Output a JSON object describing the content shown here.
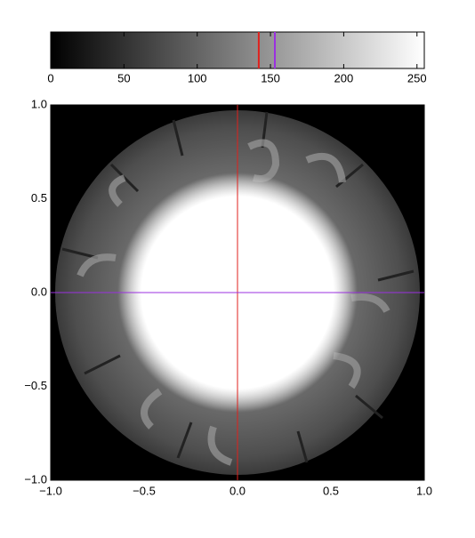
{
  "chart_data": [
    {
      "type": "colorbar",
      "xlim": [
        0,
        255
      ],
      "xticks": [
        0,
        50,
        100,
        150,
        200,
        250
      ],
      "markers": [
        {
          "value": 142,
          "color": "#e0201c"
        },
        {
          "value": 153,
          "color": "#9b30e0"
        }
      ]
    },
    {
      "type": "image",
      "xlim": [
        -1,
        1
      ],
      "ylim": [
        -1,
        1
      ],
      "xticks": [
        {
          "value": -1,
          "label": "−1.0"
        },
        {
          "value": -0.5,
          "label": "−0.5"
        },
        {
          "value": 0,
          "label": "0.0"
        },
        {
          "value": 0.5,
          "label": "0.5"
        },
        {
          "value": 1,
          "label": "1.0"
        }
      ],
      "yticks": [
        {
          "value": -1,
          "label": "−1.0"
        },
        {
          "value": -0.5,
          "label": "−0.5"
        },
        {
          "value": 0,
          "label": "0.0"
        },
        {
          "value": 0.5,
          "label": "0.5"
        },
        {
          "value": 1,
          "label": "1.0"
        }
      ],
      "cursor": {
        "x": 0,
        "y": 0,
        "x_color": "#e0201c",
        "y_color": "#9b30e0"
      }
    }
  ]
}
